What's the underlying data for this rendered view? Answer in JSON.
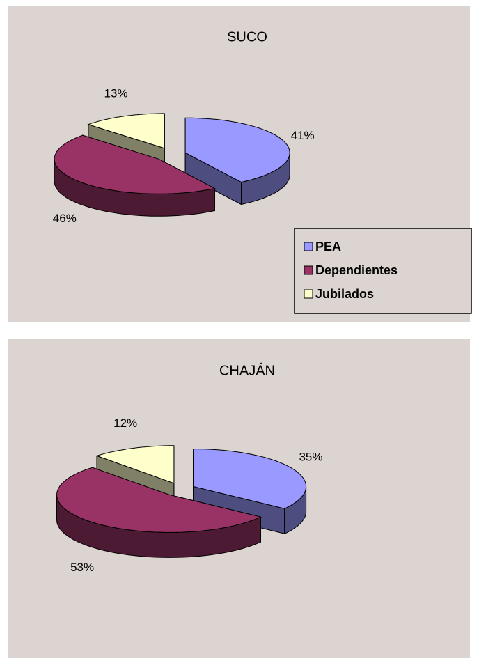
{
  "chart_data": [
    {
      "type": "pie",
      "title": "SUCO",
      "categories": [
        "PEA",
        "Dependientes",
        "Jubilados"
      ],
      "values": [
        41,
        46,
        13
      ],
      "value_labels": [
        "41%",
        "46%",
        "13%"
      ],
      "colors": [
        "#9999ff",
        "#993366",
        "#ffffcc"
      ],
      "legend": true
    },
    {
      "type": "pie",
      "title": "CHAJÁN",
      "values": [
        35,
        53,
        12
      ],
      "value_labels": [
        "35%",
        "53%",
        "12%"
      ],
      "colors": [
        "#9999ff",
        "#993366",
        "#ffffcc"
      ],
      "legend": false
    }
  ]
}
